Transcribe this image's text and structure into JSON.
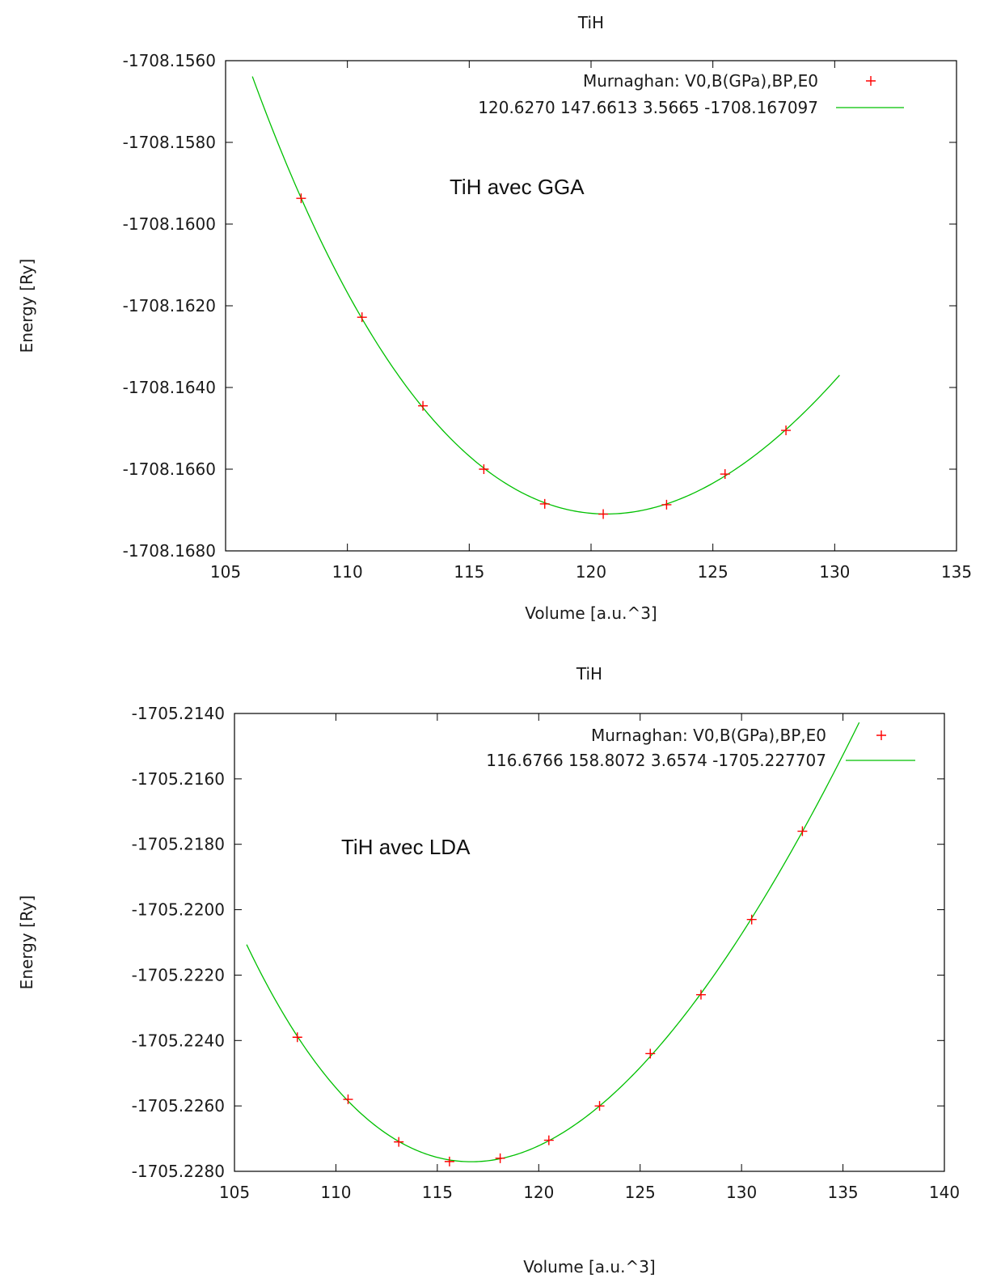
{
  "chart_data": [
    {
      "type": "scatter",
      "title": "TiH",
      "xlabel": "Volume [a.u.^3]",
      "ylabel": "Energy [Ry]",
      "xlim": [
        105,
        135
      ],
      "ylim": [
        -1708.168,
        -1708.156
      ],
      "x_ticks": [
        105,
        110,
        115,
        120,
        125,
        130,
        135
      ],
      "x_tick_labels": [
        "105",
        "110",
        "115",
        "120",
        "125",
        "130",
        "135"
      ],
      "y_ticks": [
        -1708.156,
        -1708.158,
        -1708.16,
        -1708.162,
        -1708.164,
        -1708.166,
        -1708.168
      ],
      "y_tick_labels": [
        "-1708.1560",
        "-1708.1580",
        "-1708.1600",
        "-1708.1620",
        "-1708.1640",
        "-1708.1660",
        "-1708.1680"
      ],
      "grid": false,
      "legend_position": "top-right",
      "legend": [
        {
          "label": "Murnaghan: V0,B(GPa),BP,E0",
          "marker": "plus",
          "color": "#ff0000"
        },
        {
          "label": "120.6270 147.6613 3.5665 -1708.167097",
          "marker": "line",
          "color": "#00c000"
        }
      ],
      "annotation": "TiH avec GGA",
      "points": {
        "x": [
          108.1,
          110.6,
          113.1,
          115.6,
          118.1,
          120.5,
          123.1,
          125.5,
          128.0
        ],
        "y": [
          -1708.15937,
          -1708.16228,
          -1708.16445,
          -1708.166,
          -1708.16685,
          -1708.1671,
          -1708.16687,
          -1708.16612,
          -1708.16505
        ]
      },
      "fit": {
        "model": "Murnaghan",
        "V0": 120.627,
        "B_GPa": 147.6613,
        "BP": 3.5665,
        "E0": -1708.167097,
        "x_range": [
          106.1,
          130.2
        ]
      }
    },
    {
      "type": "scatter",
      "title": "TiH",
      "xlabel": "Volume [a.u.^3]",
      "ylabel": "Energy [Ry]",
      "xlim": [
        105,
        140
      ],
      "ylim": [
        -1705.228,
        -1705.214
      ],
      "x_ticks": [
        105,
        110,
        115,
        120,
        125,
        130,
        135,
        140
      ],
      "x_tick_labels": [
        "105",
        "110",
        "115",
        "120",
        "125",
        "130",
        "135",
        "140"
      ],
      "y_ticks": [
        -1705.214,
        -1705.216,
        -1705.218,
        -1705.22,
        -1705.222,
        -1705.224,
        -1705.226,
        -1705.228
      ],
      "y_tick_labels": [
        "-1705.2140",
        "-1705.2160",
        "-1705.2180",
        "-1705.2200",
        "-1705.2220",
        "-1705.2240",
        "-1705.2260",
        "-1705.2280"
      ],
      "grid": false,
      "legend_position": "top-right",
      "legend": [
        {
          "label": "Murnaghan: V0,B(GPa),BP,E0",
          "marker": "plus",
          "color": "#ff0000"
        },
        {
          "label": "116.6766 158.8072 3.6574 -1705.227707",
          "marker": "line",
          "color": "#00c000"
        }
      ],
      "annotation": "TiH avec LDA",
      "points": {
        "x": [
          108.1,
          110.6,
          113.1,
          115.6,
          118.1,
          120.5,
          123.0,
          125.5,
          128.0,
          130.5,
          133.0
        ],
        "y": [
          -1705.2239,
          -1705.2258,
          -1705.2271,
          -1705.2277,
          -1705.2276,
          -1705.22705,
          -1705.226,
          -1705.2244,
          -1705.2226,
          -1705.2203,
          -1705.2176
        ]
      },
      "fit": {
        "model": "Murnaghan",
        "V0": 116.6766,
        "B_GPa": 158.8072,
        "BP": 3.6574,
        "E0": -1705.227707,
        "x_range": [
          105.6,
          135.8
        ]
      }
    }
  ]
}
